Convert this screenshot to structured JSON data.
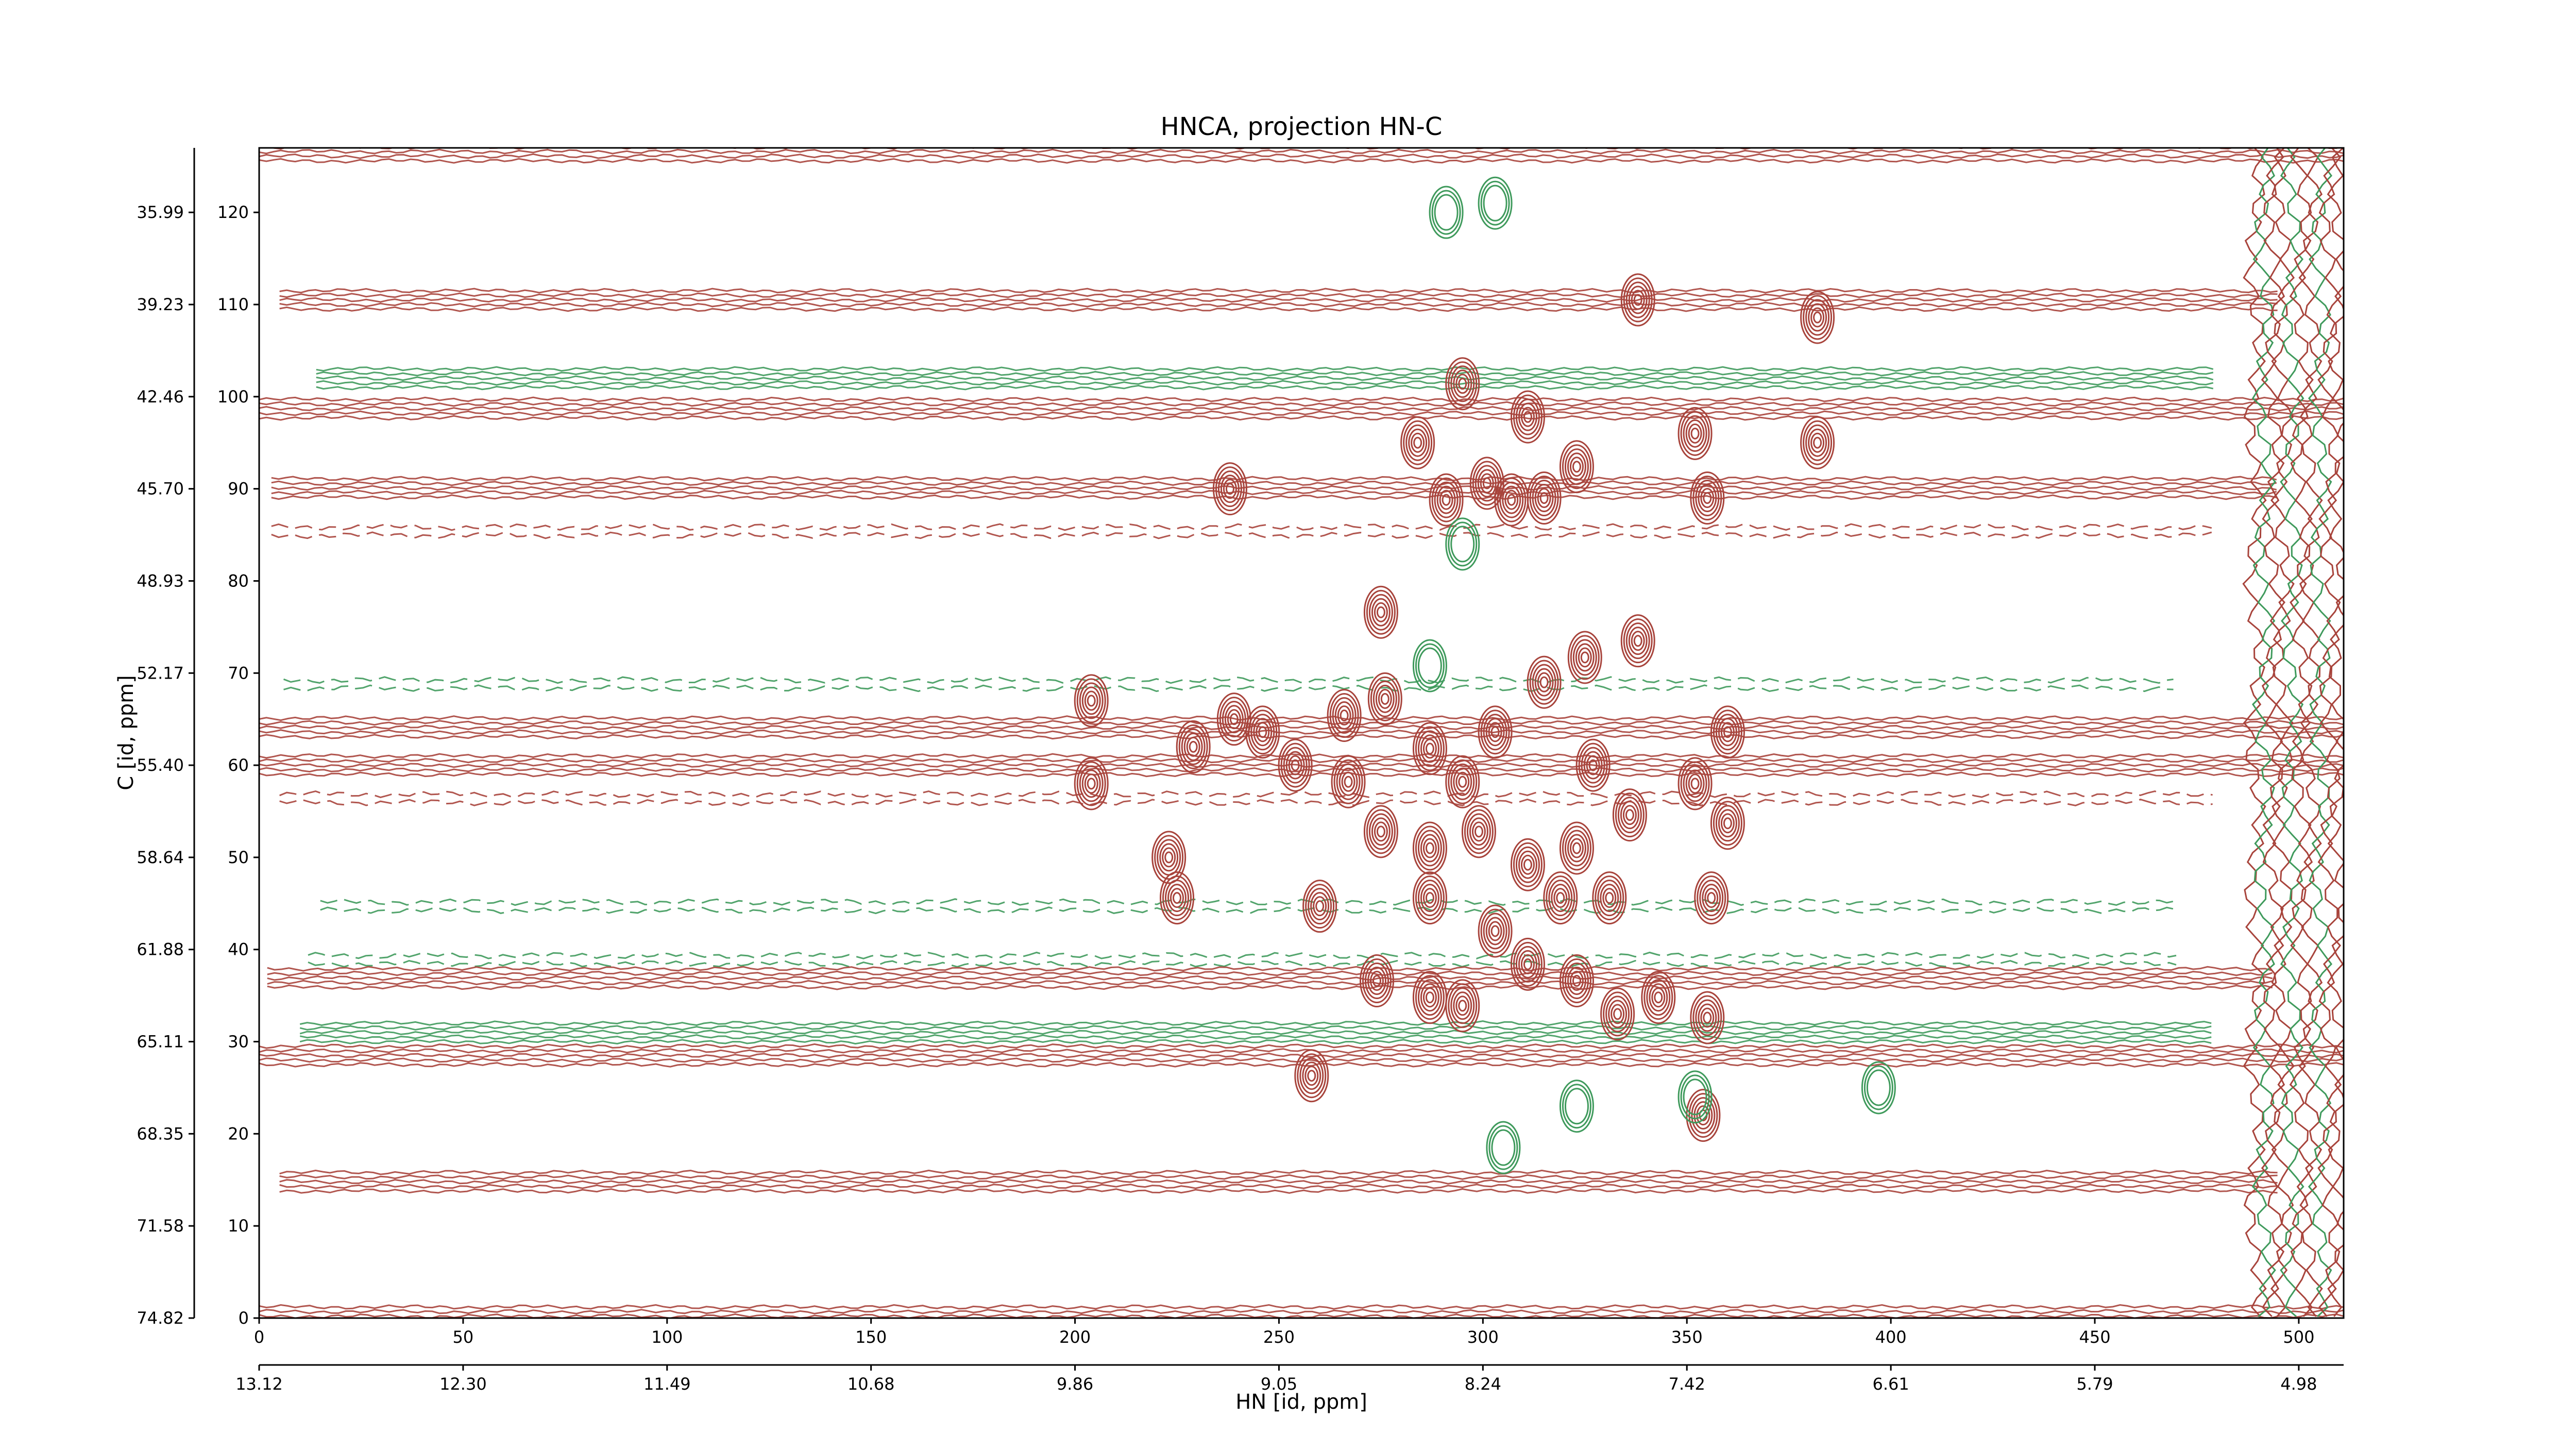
{
  "chart_data": {
    "type": "contour",
    "title": "HNCA, projection HN-C",
    "xlabel": "HN [id, ppm]",
    "ylabel": "C [id, ppm]",
    "xlim": [
      0,
      511
    ],
    "ylim": [
      0,
      127
    ],
    "xticks": [
      0,
      50,
      100,
      150,
      200,
      250,
      300,
      350,
      400,
      450,
      500
    ],
    "yticks": [
      0,
      10,
      20,
      30,
      40,
      50,
      60,
      70,
      80,
      90,
      100,
      110,
      120
    ],
    "x2ticks": [
      {
        "value": 0,
        "label": "13.12"
      },
      {
        "value": 50,
        "label": "12.30"
      },
      {
        "value": 100,
        "label": "11.49"
      },
      {
        "value": 150,
        "label": "10.68"
      },
      {
        "value": 200,
        "label": "9.86"
      },
      {
        "value": 250,
        "label": "9.05"
      },
      {
        "value": 300,
        "label": "8.24"
      },
      {
        "value": 350,
        "label": "7.42"
      },
      {
        "value": 400,
        "label": "6.61"
      },
      {
        "value": 450,
        "label": "5.79"
      },
      {
        "value": 500,
        "label": "4.98"
      }
    ],
    "y2ticks": [
      {
        "value": 0,
        "label": "74.82"
      },
      {
        "value": 10,
        "label": "71.58"
      },
      {
        "value": 20,
        "label": "68.35"
      },
      {
        "value": 30,
        "label": "65.11"
      },
      {
        "value": 40,
        "label": "61.88"
      },
      {
        "value": 50,
        "label": "58.64"
      },
      {
        "value": 60,
        "label": "55.40"
      },
      {
        "value": 70,
        "label": "52.17"
      },
      {
        "value": 80,
        "label": "48.93"
      },
      {
        "value": 90,
        "label": "45.70"
      },
      {
        "value": 100,
        "label": "42.46"
      },
      {
        "value": 110,
        "label": "39.23"
      },
      {
        "value": 120,
        "label": "35.99"
      }
    ],
    "positive_color": "#a8443c",
    "negative_color": "#3f9a5c",
    "ridges": [
      {
        "y": 126.6,
        "sign": "positive",
        "x_range": [
          0,
          511
        ],
        "dashed": false
      },
      {
        "y": 110.5,
        "sign": "positive",
        "x_range": [
          5,
          495
        ],
        "dashed": false
      },
      {
        "y": 102.0,
        "sign": "negative",
        "x_range": [
          14,
          480
        ],
        "dashed": false
      },
      {
        "y": 98.7,
        "sign": "positive",
        "x_range": [
          0,
          511
        ],
        "dashed": false
      },
      {
        "y": 90.1,
        "sign": "positive",
        "x_range": [
          3,
          495
        ],
        "dashed": false
      },
      {
        "y": 85.4,
        "sign": "positive",
        "x_range": [
          3,
          480
        ],
        "dashed": true
      },
      {
        "y": 68.8,
        "sign": "negative",
        "x_range": [
          6,
          470
        ],
        "dashed": true
      },
      {
        "y": 64.1,
        "sign": "positive",
        "x_range": [
          0,
          511
        ],
        "dashed": false
      },
      {
        "y": 60.0,
        "sign": "positive",
        "x_range": [
          0,
          511
        ],
        "dashed": false
      },
      {
        "y": 56.4,
        "sign": "positive",
        "x_range": [
          5,
          480
        ],
        "dashed": true
      },
      {
        "y": 44.7,
        "sign": "negative",
        "x_range": [
          15,
          470
        ],
        "dashed": true
      },
      {
        "y": 38.9,
        "sign": "negative",
        "x_range": [
          12,
          470
        ],
        "dashed": true
      },
      {
        "y": 36.9,
        "sign": "positive",
        "x_range": [
          2,
          495
        ],
        "dashed": false
      },
      {
        "y": 31.0,
        "sign": "negative",
        "x_range": [
          10,
          480
        ],
        "dashed": false
      },
      {
        "y": 28.5,
        "sign": "positive",
        "x_range": [
          0,
          511
        ],
        "dashed": false
      },
      {
        "y": 14.8,
        "sign": "positive",
        "x_range": [
          5,
          495
        ],
        "dashed": false
      },
      {
        "y": 0.2,
        "sign": "positive",
        "x_range": [
          0,
          511
        ],
        "dashed": false
      }
    ],
    "positive_peaks": {
      "x": [
        284,
        382,
        238,
        355,
        275,
        204,
        204,
        239,
        229,
        223,
        225,
        246,
        260,
        258,
        356,
        355,
        352,
        360,
        360,
        338,
        325,
        323,
        315,
        307,
        301,
        291,
        333,
        274,
        287,
        295,
        323,
        311,
        303,
        266,
        276,
        287,
        295,
        303,
        315,
        327,
        336,
        323,
        311,
        299,
        287,
        275,
        267,
        319,
        331,
        287,
        343,
        254,
        382,
        338,
        352,
        295,
        311,
        354
      ],
      "y": [
        95,
        95,
        90,
        89,
        76.6,
        67,
        58,
        65,
        62,
        50,
        45.6,
        63.6,
        44.7,
        26.3,
        45.6,
        32.6,
        58,
        63.6,
        53.7,
        73.5,
        71.7,
        92.4,
        89,
        88.8,
        90.6,
        88.8,
        33,
        36.6,
        34.8,
        33.9,
        36.6,
        38.4,
        42,
        65.4,
        67.2,
        61.8,
        58.2,
        63.6,
        69,
        60,
        54.6,
        51,
        49.2,
        52.8,
        51,
        52.8,
        58.2,
        45.6,
        45.6,
        45.6,
        34.8,
        60,
        108.6,
        110.5,
        96,
        101.4,
        97.8,
        22
      ]
    },
    "negative_peaks": {
      "x": [
        291,
        303,
        295,
        323,
        352,
        305,
        397,
        287
      ],
      "y": [
        120,
        121,
        84,
        23,
        24,
        18.5,
        25,
        70.8
      ]
    },
    "edge_band": {
      "x_range": [
        488,
        511
      ]
    }
  }
}
